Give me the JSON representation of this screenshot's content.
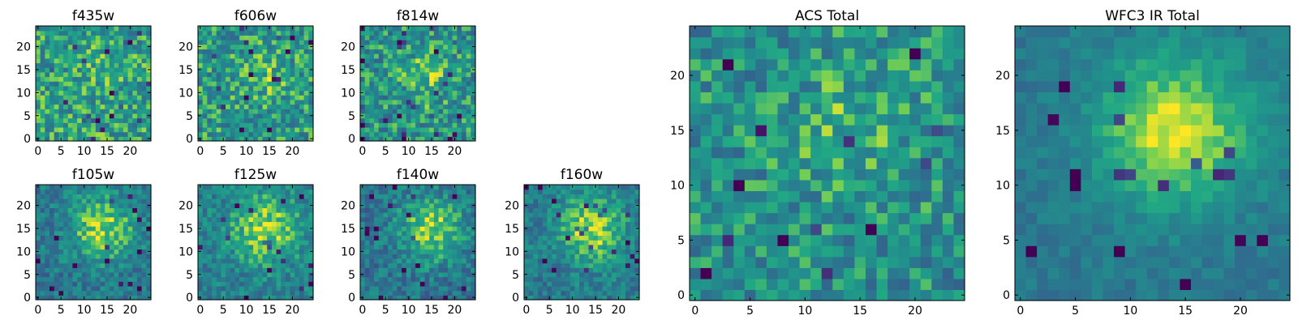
{
  "chart_data": [
    {
      "type": "heatmap",
      "title": "f435w",
      "colormap": "viridis",
      "grid_size": [
        25,
        25
      ],
      "xlim": [
        -0.5,
        24.5
      ],
      "ylim": [
        -0.5,
        24.5
      ],
      "xticks": [
        0,
        5,
        10,
        15,
        20
      ],
      "yticks": [
        0,
        5,
        10,
        15,
        20
      ],
      "pattern": "noisy",
      "peak_center": [
        14,
        15
      ],
      "peak_strength": 0.05,
      "noise": 0.24,
      "base": 0.68
    },
    {
      "type": "heatmap",
      "title": "f606w",
      "colormap": "viridis",
      "grid_size": [
        25,
        25
      ],
      "xlim": [
        -0.5,
        24.5
      ],
      "ylim": [
        -0.5,
        24.5
      ],
      "xticks": [
        0,
        5,
        10,
        15,
        20
      ],
      "yticks": [
        0,
        5,
        10,
        15,
        20
      ],
      "pattern": "noisy",
      "peak_center": [
        14,
        14
      ],
      "peak_strength": 0.12,
      "noise": 0.24,
      "base": 0.66
    },
    {
      "type": "heatmap",
      "title": "f814w",
      "colormap": "viridis",
      "grid_size": [
        25,
        25
      ],
      "xlim": [
        -0.5,
        24.5
      ],
      "ylim": [
        -0.5,
        24.5
      ],
      "xticks": [
        0,
        5,
        10,
        15,
        20
      ],
      "yticks": [
        0,
        5,
        10,
        15,
        20
      ],
      "pattern": "noisy",
      "peak_center": [
        14,
        13
      ],
      "peak_strength": 0.18,
      "noise": 0.24,
      "base": 0.63
    },
    {
      "type": "heatmap",
      "title": "f105w",
      "colormap": "viridis",
      "grid_size": [
        25,
        25
      ],
      "xlim": [
        -0.5,
        24.5
      ],
      "ylim": [
        -0.5,
        24.5
      ],
      "xticks": [
        0,
        5,
        10,
        15,
        20
      ],
      "yticks": [
        0,
        5,
        10,
        15,
        20
      ],
      "pattern": "peaked",
      "peak_center": [
        14,
        15
      ],
      "peak_strength": 0.42,
      "noise": 0.17,
      "base": 0.5
    },
    {
      "type": "heatmap",
      "title": "f125w",
      "colormap": "viridis",
      "grid_size": [
        25,
        25
      ],
      "xlim": [
        -0.5,
        24.5
      ],
      "ylim": [
        -0.5,
        24.5
      ],
      "xticks": [
        0,
        5,
        10,
        15,
        20
      ],
      "yticks": [
        0,
        5,
        10,
        15,
        20
      ],
      "pattern": "peaked",
      "peak_center": [
        14,
        15
      ],
      "peak_strength": 0.38,
      "noise": 0.17,
      "base": 0.55
    },
    {
      "type": "heatmap",
      "title": "f140w",
      "colormap": "viridis",
      "grid_size": [
        25,
        25
      ],
      "xlim": [
        -0.5,
        24.5
      ],
      "ylim": [
        -0.5,
        24.5
      ],
      "xticks": [
        0,
        5,
        10,
        15,
        20
      ],
      "yticks": [
        0,
        5,
        10,
        15,
        20
      ],
      "pattern": "peaked",
      "peak_center": [
        15,
        15
      ],
      "peak_strength": 0.42,
      "noise": 0.18,
      "base": 0.48
    },
    {
      "type": "heatmap",
      "title": "f160w",
      "colormap": "viridis",
      "grid_size": [
        25,
        25
      ],
      "xlim": [
        -0.5,
        24.5
      ],
      "ylim": [
        -0.5,
        24.5
      ],
      "xticks": [
        0,
        5,
        10,
        15,
        20
      ],
      "yticks": [
        0,
        5,
        10,
        15,
        20
      ],
      "pattern": "peaked",
      "peak_center": [
        14,
        15
      ],
      "peak_strength": 0.42,
      "noise": 0.16,
      "base": 0.52
    },
    {
      "type": "heatmap",
      "title": "ACS Total",
      "colormap": "viridis",
      "grid_size": [
        25,
        25
      ],
      "xlim": [
        -0.5,
        24.5
      ],
      "ylim": [
        -0.5,
        24.5
      ],
      "xticks": [
        0,
        5,
        10,
        15,
        20
      ],
      "yticks": [
        0,
        5,
        10,
        15,
        20
      ],
      "pattern": "noisy",
      "peak_center": [
        14,
        15
      ],
      "peak_strength": 0.15,
      "noise": 0.22,
      "base": 0.62
    },
    {
      "type": "heatmap",
      "title": "WFC3 IR Total",
      "colormap": "viridis",
      "grid_size": [
        25,
        25
      ],
      "xlim": [
        -0.5,
        24.5
      ],
      "ylim": [
        -0.5,
        24.5
      ],
      "xticks": [
        0,
        5,
        10,
        15,
        20
      ],
      "yticks": [
        0,
        5,
        10,
        15,
        20
      ],
      "pattern": "peaked",
      "peak_center": [
        14,
        15
      ],
      "peak_strength": 0.48,
      "noise": 0.08,
      "base": 0.5
    }
  ]
}
